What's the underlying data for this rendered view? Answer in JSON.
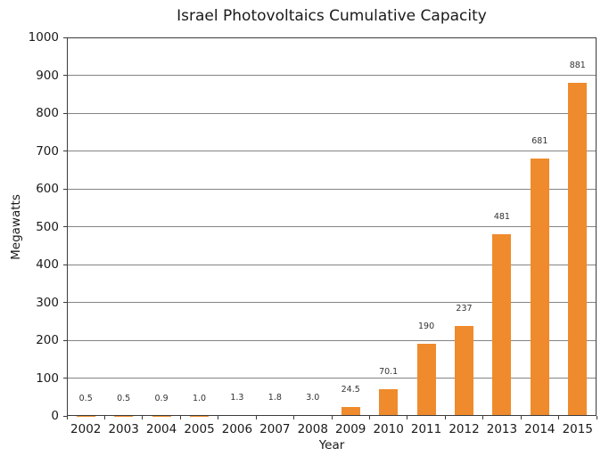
{
  "title": "Israel Photovoltaics Cumulative Capacity",
  "chart_data": {
    "type": "bar",
    "title": "Israel Photovoltaics Cumulative Capacity",
    "xlabel": "Year",
    "ylabel": "Megawatts",
    "categories": [
      "2002",
      "2003",
      "2004",
      "2005",
      "2006",
      "2007",
      "2008",
      "2009",
      "2010",
      "2011",
      "2012",
      "2013",
      "2014",
      "2015"
    ],
    "values": [
      0.5,
      0.5,
      0.9,
      1.0,
      1.3,
      1.8,
      3.0,
      24.5,
      70.1,
      190,
      237,
      481,
      681,
      881
    ],
    "bar_labels": [
      "0.5",
      "0.5",
      "0.9",
      "1.0",
      "1.3",
      "1.8",
      "3.0",
      "24.5",
      "70.1",
      "190",
      "237",
      "481",
      "681",
      "881"
    ],
    "ylim": [
      0,
      1000
    ],
    "yticks": [
      0,
      100,
      200,
      300,
      400,
      500,
      600,
      700,
      800,
      900,
      1000
    ],
    "grid": "horizontal",
    "legend": "none",
    "colors": {
      "bar": "#ef8b2c",
      "grid": "#848484",
      "frame": "#3c3c3c",
      "text": "#1a1a1a",
      "bar_label": "#333333",
      "background": "#ffffff"
    }
  }
}
